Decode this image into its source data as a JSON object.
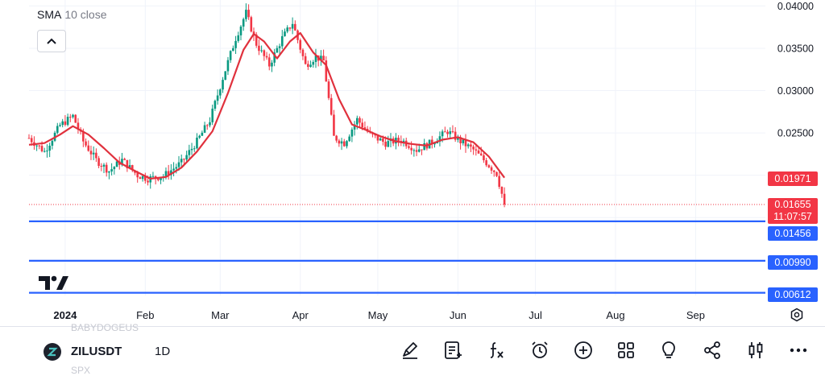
{
  "chart_data": {
    "type": "candlestick",
    "symbol": "ZILUSDT",
    "interval": "1D",
    "indicator": {
      "name": "SMA",
      "params": "10 close",
      "color": "#e0313d"
    },
    "y_ticks": [
      "0.04000",
      "0.03500",
      "0.03000",
      "0.02500"
    ],
    "x_ticks": [
      "2024",
      "Feb",
      "Mar",
      "Apr",
      "May",
      "Jun",
      "Jul",
      "Aug",
      "Sep"
    ],
    "ylim": [
      0.0058,
      0.0407
    ],
    "x_domain": [
      "2023-12-18",
      "2024-09-28"
    ],
    "grid": true,
    "price_labels": [
      {
        "value": "0.01971",
        "color": "#f23645",
        "note": "SMA value"
      },
      {
        "value": "0.01655",
        "timer": "11:07:57",
        "color": "#f23645",
        "note": "last price"
      },
      {
        "value": "0.01456",
        "color": "#2962ff",
        "note": "horizontal line"
      },
      {
        "value": "0.00990",
        "color": "#2962ff",
        "note": "horizontal line"
      },
      {
        "value": "0.00612",
        "color": "#2962ff",
        "note": "horizontal line"
      }
    ],
    "horizontal_lines": [
      0.01456,
      0.0099,
      0.00612
    ],
    "last_price": 0.01655,
    "sma_last": 0.01971,
    "colors": {
      "up": "#089981",
      "down": "#f23645",
      "sma": "#e0313d",
      "hline": "#2962ff"
    },
    "close_path": [
      [
        "2023-12-18",
        0.0244
      ],
      [
        "2023-12-24",
        0.0228
      ],
      [
        "2023-12-30",
        0.0259
      ],
      [
        "2024-01-04",
        0.027
      ],
      [
        "2024-01-08",
        0.024
      ],
      [
        "2024-01-13",
        0.0218
      ],
      [
        "2024-01-18",
        0.0205
      ],
      [
        "2024-01-23",
        0.0218
      ],
      [
        "2024-01-29",
        0.02
      ],
      [
        "2024-02-02",
        0.0196
      ],
      [
        "2024-02-08",
        0.0199
      ],
      [
        "2024-02-15",
        0.0215
      ],
      [
        "2024-02-21",
        0.024
      ],
      [
        "2024-02-26",
        0.0265
      ],
      [
        "2024-03-02",
        0.0315
      ],
      [
        "2024-03-07",
        0.0362
      ],
      [
        "2024-03-11",
        0.0392
      ],
      [
        "2024-03-15",
        0.0355
      ],
      [
        "2024-03-20",
        0.033
      ],
      [
        "2024-03-25",
        0.0362
      ],
      [
        "2024-03-29",
        0.038
      ],
      [
        "2024-04-03",
        0.033
      ],
      [
        "2024-04-07",
        0.034
      ],
      [
        "2024-04-10",
        0.0335
      ],
      [
        "2024-04-14",
        0.0245
      ],
      [
        "2024-04-18",
        0.0238
      ],
      [
        "2024-04-23",
        0.0266
      ],
      [
        "2024-04-28",
        0.0248
      ],
      [
        "2024-05-04",
        0.0238
      ],
      [
        "2024-05-10",
        0.0242
      ],
      [
        "2024-05-16",
        0.023
      ],
      [
        "2024-05-22",
        0.0239
      ],
      [
        "2024-05-28",
        0.0252
      ],
      [
        "2024-06-02",
        0.024
      ],
      [
        "2024-06-07",
        0.023
      ],
      [
        "2024-06-12",
        0.0215
      ],
      [
        "2024-06-16",
        0.0202
      ],
      [
        "2024-06-18",
        0.0178
      ],
      [
        "2024-06-19",
        0.01655
      ]
    ],
    "sma_path": [
      [
        "2023-12-18",
        0.0236
      ],
      [
        "2023-12-24",
        0.0238
      ],
      [
        "2023-12-30",
        0.0248
      ],
      [
        "2024-01-04",
        0.0258
      ],
      [
        "2024-01-10",
        0.0248
      ],
      [
        "2024-01-16",
        0.0232
      ],
      [
        "2024-01-22",
        0.0215
      ],
      [
        "2024-01-28",
        0.0205
      ],
      [
        "2024-02-03",
        0.0196
      ],
      [
        "2024-02-09",
        0.0198
      ],
      [
        "2024-02-15",
        0.0209
      ],
      [
        "2024-02-21",
        0.0228
      ],
      [
        "2024-02-27",
        0.0252
      ],
      [
        "2024-03-04",
        0.0297
      ],
      [
        "2024-03-10",
        0.0348
      ],
      [
        "2024-03-14",
        0.0367
      ],
      [
        "2024-03-18",
        0.0358
      ],
      [
        "2024-03-23",
        0.0338
      ],
      [
        "2024-03-28",
        0.0358
      ],
      [
        "2024-04-01",
        0.0368
      ],
      [
        "2024-04-06",
        0.0345
      ],
      [
        "2024-04-11",
        0.033
      ],
      [
        "2024-04-16",
        0.029
      ],
      [
        "2024-04-21",
        0.026
      ],
      [
        "2024-04-26",
        0.0254
      ],
      [
        "2024-05-02",
        0.0246
      ],
      [
        "2024-05-08",
        0.024
      ],
      [
        "2024-05-14",
        0.0237
      ],
      [
        "2024-05-20",
        0.0235
      ],
      [
        "2024-05-26",
        0.0242
      ],
      [
        "2024-06-01",
        0.0245
      ],
      [
        "2024-06-07",
        0.0239
      ],
      [
        "2024-06-13",
        0.0222
      ],
      [
        "2024-06-19",
        0.01971
      ]
    ]
  },
  "toolbar": {
    "symbol": "ZILUSDT",
    "interval": "1D",
    "ghost_top": "BABYDOGEUS",
    "ghost_bottom": "SPX",
    "tools": [
      "draw-icon",
      "notes-icon",
      "function-icon",
      "alarm-clock-icon",
      "plus-circle-icon",
      "grid-icon",
      "lightbulb-icon",
      "share-icon",
      "candles-icon",
      "more-icon"
    ]
  }
}
